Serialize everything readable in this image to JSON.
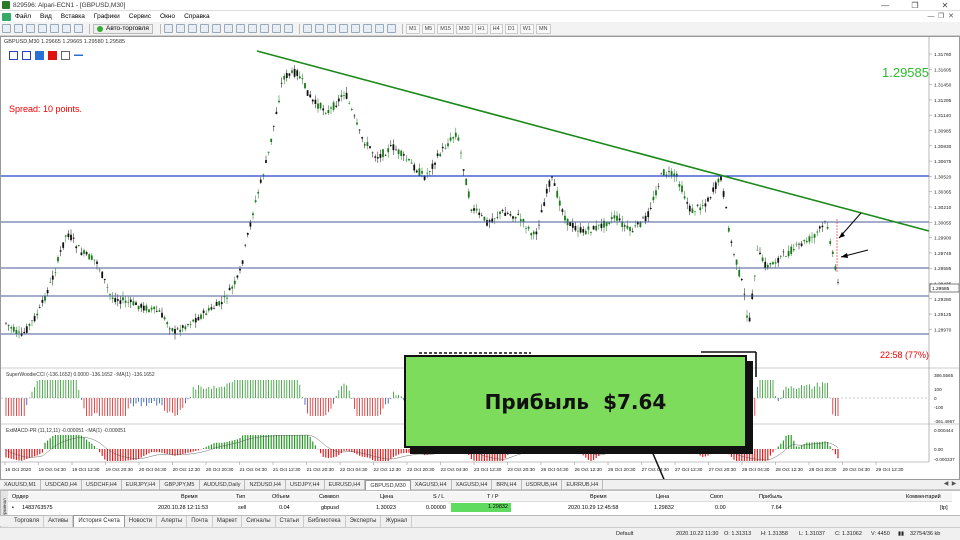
{
  "window": {
    "title": "829596: Alpari-ECN1 - [GBPUSD,M30]",
    "controls": [
      "—",
      "❐",
      "✕"
    ]
  },
  "menu": {
    "items": [
      "Файл",
      "Вид",
      "Вставка",
      "Графики",
      "Сервис",
      "Окно",
      "Справка"
    ],
    "right_controls": [
      "—",
      "❐",
      "✕"
    ]
  },
  "toolbar": {
    "auto_trading_label": "Авто-торговля",
    "timeframes": [
      "M1",
      "M5",
      "M15",
      "M30",
      "H1",
      "H4",
      "D1",
      "W1",
      "MN"
    ]
  },
  "chart": {
    "header": "GBPUSD,M30  1.29665 1.29665 1.29580 1.29585",
    "spread_label": "Spread: 10 points.",
    "bid_big": "1.29585",
    "timer": "22:58 (77%)",
    "current_price_tag": "1.29585",
    "price_axis": [
      "1.31760",
      "1.31605",
      "1.31450",
      "1.31295",
      "1.31140",
      "1.30985",
      "1.30830",
      "1.30675",
      "1.30520",
      "1.30365",
      "1.30210",
      "1.30055",
      "1.29900",
      "1.29745",
      "1.29585",
      "1.29435",
      "1.29280",
      "1.29125",
      "1.28970"
    ],
    "time_axis": [
      "16 Oct 2020",
      "19 Oct 04:30",
      "19 Oct 12:30",
      "19 Oct 20:30",
      "20 Oct 04:30",
      "20 Oct 12:30",
      "20 Oct 20:30",
      "21 Oct 04:30",
      "21 Oct 12:30",
      "21 Oct 20:30",
      "22 Oct 04:30",
      "22 Oct 12:30",
      "22 Oct 20:30",
      "23 Oct 04:30",
      "23 Oct 12:30",
      "23 Oct 20:30",
      "26 Oct 04:30",
      "26 Oct 12:30",
      "26 Oct 20:30",
      "27 Oct 04:30",
      "27 Oct 12:30",
      "27 Oct 20:30",
      "28 Oct 04:30",
      "28 Oct 12:30",
      "28 Oct 20:30",
      "29 Oct 04:30",
      "29 Oct 12:30"
    ],
    "cci_title": "SuperWoodieCCI (-136.1652) 0.0000 -136.1652 -:MA(1) -136.1652",
    "cci_axis": [
      "386.5565",
      "100",
      "0",
      "-100",
      "-361.4967"
    ],
    "macd_title": "ExtMACD-PR (11,12,11) -0.000051 -:MA(1) -0.000051",
    "macd_axis": [
      "0.000444",
      "0.00",
      "-0.000337"
    ],
    "colors": {
      "trendline": "#1a8a1a",
      "level_blue": "#2340c8",
      "level_navy": "#4a5a9a",
      "bull": "#1a7a1a",
      "bear": "#111111"
    }
  },
  "overlay": {
    "profit_label": "Прибыль",
    "profit_amount": "$7.64"
  },
  "symbol_tabs": [
    "XAUUSD,M1",
    "USDCAD,H4",
    "USDCHF,H4",
    "EURJPY,H4",
    "GBPJPY,M5",
    "AUDUSD,Daily",
    "NZDUSD,H4",
    "USDJPY,H4",
    "EURUSD,H4",
    "GBPUSD,M30",
    "XAGUSD,H4",
    "XAGUSD,H4",
    "BRN,H4",
    "USDRUB,H4",
    "EURRUB,H4"
  ],
  "active_symbol_tab": "GBPUSD,M30",
  "terminal": {
    "side_label": "Терминал",
    "headers": {
      "order": "Ордер",
      "open_time": "Время",
      "type": "Тип",
      "volume": "Объем",
      "symbol": "Символ",
      "open_price": "Цена",
      "sl": "S / L",
      "tp": "T / P",
      "close_time": "Время",
      "close_price": "Цена",
      "swap": "Своп",
      "profit": "Прибыль",
      "comment": "Комментарий"
    },
    "row": {
      "order": "1483763575",
      "open_time": "2020.10.28 12:11:53",
      "type": "sell",
      "volume": "0.04",
      "symbol": "gbpusd",
      "open_price": "1.30023",
      "sl": "0.00000",
      "tp": "1.29832",
      "close_time": "2020.10.29 12:45:58",
      "close_price": "1.29832",
      "swap": "0.00",
      "profit": "7.64",
      "comment": "[tp]"
    }
  },
  "bottom_tabs": [
    "Торговля",
    "Активы",
    "История Счета",
    "Новости",
    "Алерты",
    "Почта",
    "Маркет",
    "Сигналы",
    "Статьи",
    "Библиотека",
    "Эксперты",
    "Журнал"
  ],
  "active_bottom_tab": "История Счета",
  "status": {
    "profile": "Default",
    "time": "2020.10.22 11:30",
    "open": "O: 1.31313",
    "high": "H: 1.31358",
    "low": "L: 1.31037",
    "close": "C: 1.31062",
    "volume": "V: 4450",
    "traffic": "32754/36 kb"
  }
}
